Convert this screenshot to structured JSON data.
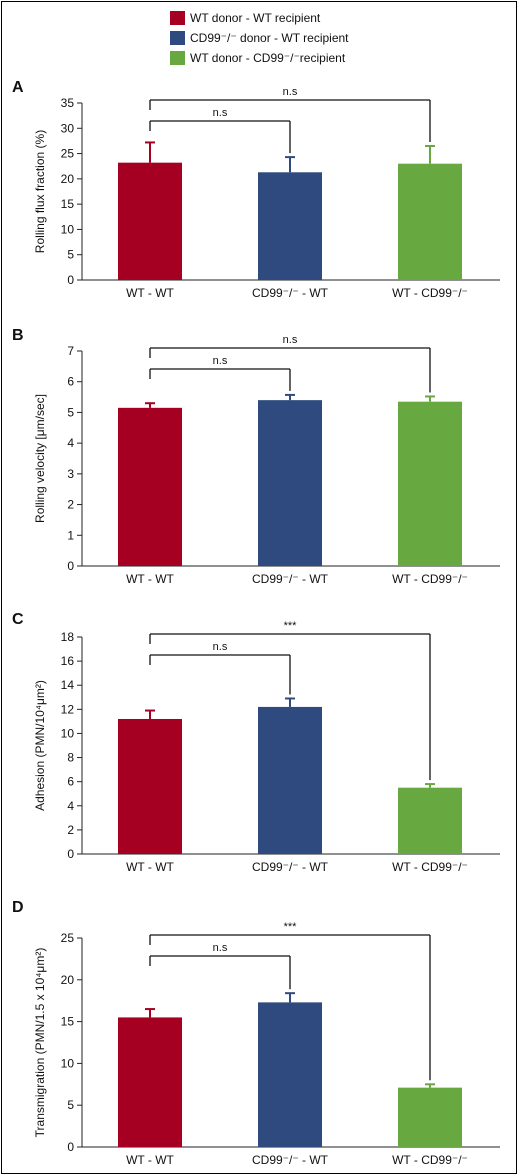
{
  "legend": [
    {
      "label": "WT donor - WT recipient",
      "color": "#A50022"
    },
    {
      "label": "CD99⁻/⁻ donor - WT recipient",
      "color": "#2F4A7E"
    },
    {
      "label": "WT donor - CD99⁻/⁻recipient",
      "color": "#67A940"
    }
  ],
  "chart_data": [
    {
      "panel": "A",
      "type": "bar",
      "ylabel": "Rolling flux fraction (%)",
      "categories": [
        "WT - WT",
        "CD99⁻/⁻ - WT",
        "WT - CD99⁻/⁻"
      ],
      "values": [
        23.2,
        21.3,
        23.0
      ],
      "errors": [
        4.0,
        3.0,
        3.5
      ],
      "colors": [
        "#A50022",
        "#2F4A7E",
        "#67A940"
      ],
      "ylim": [
        0,
        35
      ],
      "yticks": [
        0,
        5,
        10,
        15,
        20,
        25,
        30,
        35
      ],
      "significance": [
        {
          "from": 0,
          "to": 1,
          "label": "n.s"
        },
        {
          "from": 0,
          "to": 2,
          "label": "n.s"
        }
      ]
    },
    {
      "panel": "B",
      "type": "bar",
      "ylabel": "Rolling velocity [μm/sec]",
      "categories": [
        "WT - WT",
        "CD99⁻/⁻ - WT",
        "WT - CD99⁻/⁻"
      ],
      "values": [
        5.15,
        5.4,
        5.35
      ],
      "errors": [
        0.15,
        0.17,
        0.17
      ],
      "colors": [
        "#A50022",
        "#2F4A7E",
        "#67A940"
      ],
      "ylim": [
        0,
        7
      ],
      "yticks": [
        0,
        1,
        2,
        3,
        4,
        5,
        6,
        7
      ],
      "significance": [
        {
          "from": 0,
          "to": 1,
          "label": "n.s"
        },
        {
          "from": 0,
          "to": 2,
          "label": "n.s"
        }
      ]
    },
    {
      "panel": "C",
      "type": "bar",
      "ylabel": "Adhesion (PMN/10⁴μm²)",
      "categories": [
        "WT - WT",
        "CD99⁻/⁻ - WT",
        "WT - CD99⁻/⁻"
      ],
      "values": [
        11.2,
        12.2,
        5.5
      ],
      "errors": [
        0.7,
        0.7,
        0.3
      ],
      "colors": [
        "#A50022",
        "#2F4A7E",
        "#67A940"
      ],
      "ylim": [
        0,
        18
      ],
      "yticks": [
        0,
        2,
        4,
        6,
        8,
        10,
        12,
        14,
        16,
        18
      ],
      "significance": [
        {
          "from": 0,
          "to": 1,
          "label": "n.s"
        },
        {
          "from": 0,
          "to": 2,
          "label": "***"
        }
      ]
    },
    {
      "panel": "D",
      "type": "bar",
      "ylabel": "Transmigration (PMN/1.5 x 10⁴μm²)",
      "categories": [
        "WT - WT",
        "CD99⁻/⁻ - WT",
        "WT - CD99⁻/⁻"
      ],
      "values": [
        15.5,
        17.3,
        7.1
      ],
      "errors": [
        1.0,
        1.1,
        0.4
      ],
      "colors": [
        "#A50022",
        "#2F4A7E",
        "#67A940"
      ],
      "ylim": [
        0,
        25
      ],
      "yticks": [
        0,
        5,
        10,
        15,
        20,
        25
      ],
      "significance": [
        {
          "from": 0,
          "to": 1,
          "label": "n.s"
        },
        {
          "from": 0,
          "to": 2,
          "label": "***"
        }
      ]
    }
  ]
}
